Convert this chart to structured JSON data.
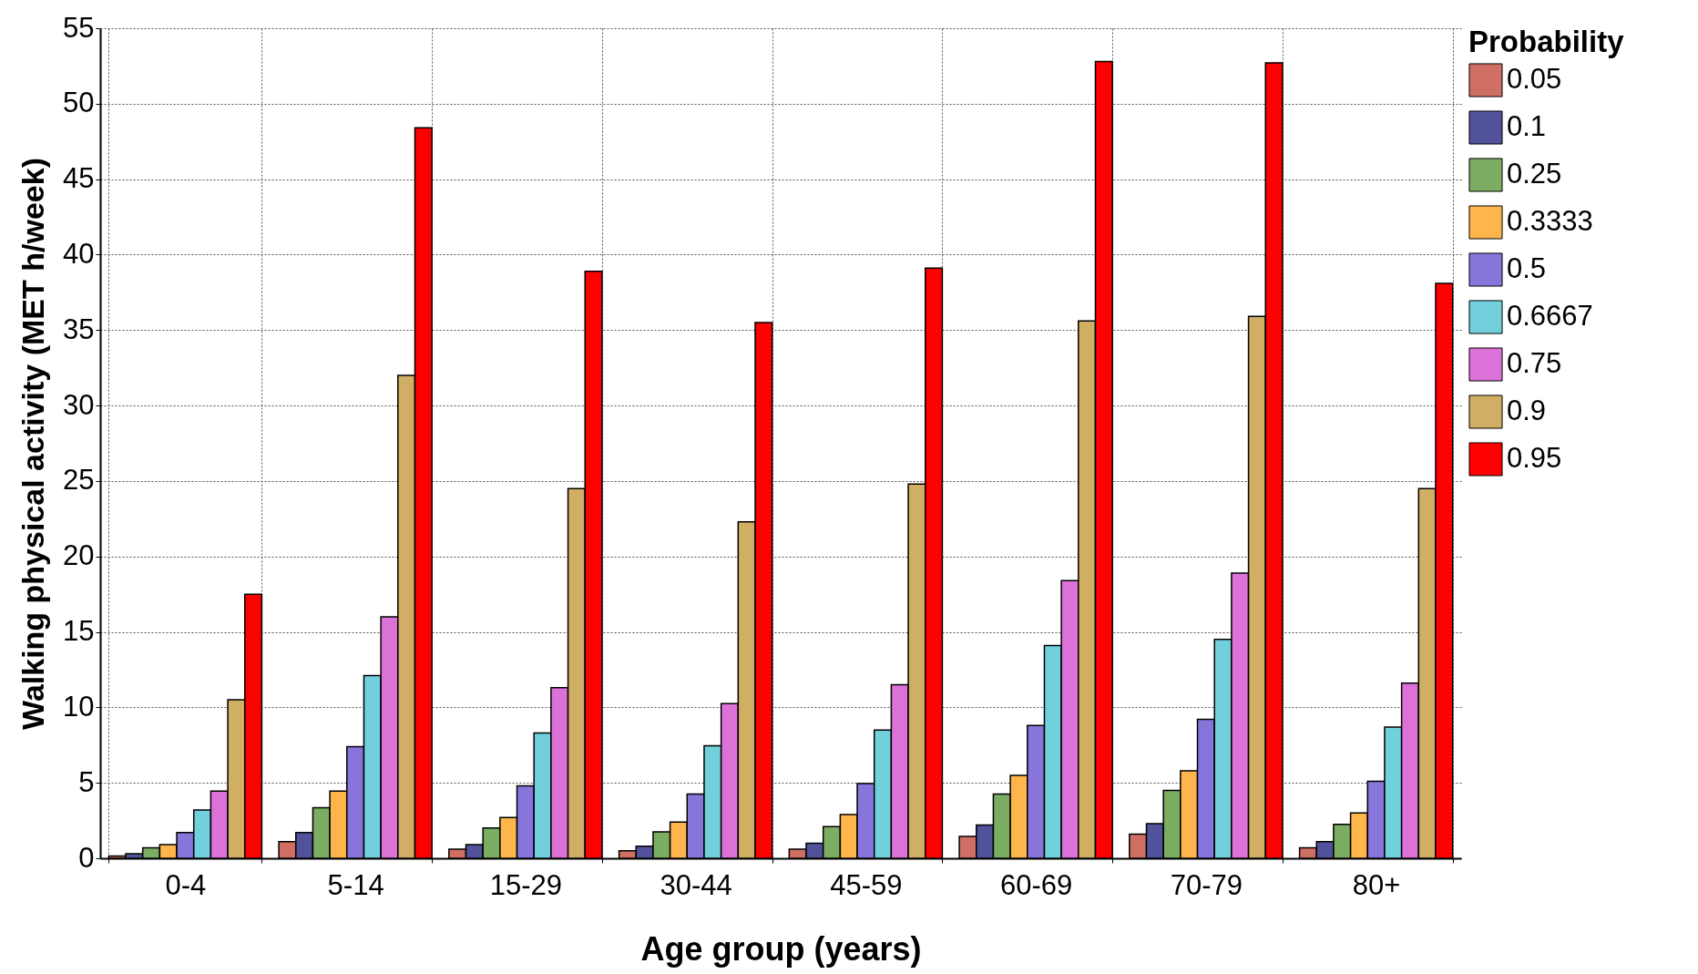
{
  "chart_data": {
    "type": "bar",
    "xlabel": "Age group (years)",
    "ylabel": "Walking physical activity (MET h/week)",
    "legend_title": "Probability",
    "categories": [
      "0-4",
      "5-14",
      "15-29",
      "30-44",
      "45-59",
      "60-69",
      "70-79",
      "80+"
    ],
    "series": [
      {
        "name": "0.05",
        "color": "#cf6f63",
        "values": [
          0.15,
          1.1,
          0.6,
          0.5,
          0.6,
          1.45,
          1.6,
          0.7
        ]
      },
      {
        "name": "0.1",
        "color": "#52529a",
        "values": [
          0.3,
          1.7,
          0.9,
          0.8,
          1.0,
          2.2,
          2.3,
          1.1
        ]
      },
      {
        "name": "0.25",
        "color": "#7bad62",
        "values": [
          0.7,
          3.35,
          2.0,
          1.75,
          2.1,
          4.25,
          4.5,
          2.25
        ]
      },
      {
        "name": "0.3333",
        "color": "#fdb54c",
        "values": [
          0.9,
          4.45,
          2.7,
          2.4,
          2.9,
          5.5,
          5.8,
          3.0
        ]
      },
      {
        "name": "0.5",
        "color": "#8875dc",
        "values": [
          1.7,
          7.4,
          4.8,
          4.25,
          4.95,
          8.8,
          9.2,
          5.1
        ]
      },
      {
        "name": "0.6667",
        "color": "#71d0dc",
        "values": [
          3.2,
          12.1,
          8.3,
          7.45,
          8.5,
          14.1,
          14.5,
          8.7
        ]
      },
      {
        "name": "0.75",
        "color": "#dc72d8",
        "values": [
          4.45,
          16.0,
          11.3,
          10.25,
          11.5,
          18.4,
          18.9,
          11.6
        ]
      },
      {
        "name": "0.9",
        "color": "#d0ae63",
        "values": [
          10.5,
          32.0,
          24.5,
          22.3,
          24.8,
          35.6,
          35.9,
          24.5
        ]
      },
      {
        "name": "0.95",
        "color": "#ff0000",
        "values": [
          17.5,
          48.4,
          38.9,
          35.5,
          39.1,
          52.8,
          52.7,
          38.1
        ]
      }
    ],
    "ylim": [
      0,
      55
    ],
    "yticks": [
      0,
      5,
      10,
      15,
      20,
      25,
      30,
      35,
      40,
      45,
      50,
      55
    ],
    "grid": true,
    "legend": "right"
  }
}
